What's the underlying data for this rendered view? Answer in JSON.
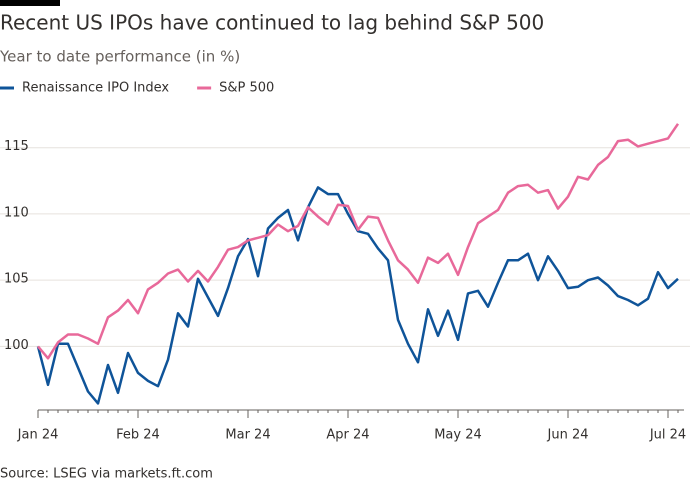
{
  "chart_data": {
    "type": "line",
    "title": "Recent US IPOs have continued to lag behind S&P 500",
    "subtitle": "Year to date performance (in %)",
    "source": "Source: LSEG via markets.ft.com",
    "categories": [
      "Jan 24",
      null,
      null,
      null,
      null,
      null,
      null,
      null,
      null,
      null,
      "Feb 24",
      null,
      null,
      null,
      null,
      null,
      null,
      null,
      null,
      null,
      null,
      "Mar 24",
      null,
      null,
      null,
      null,
      null,
      null,
      null,
      null,
      null,
      "Apr 24",
      null,
      null,
      null,
      null,
      null,
      null,
      null,
      null,
      null,
      null,
      "May 24",
      null,
      null,
      null,
      null,
      null,
      null,
      null,
      null,
      null,
      null,
      "Jun 24",
      null,
      null,
      null,
      null,
      null,
      null,
      null,
      null,
      null,
      "Jul 24",
      null
    ],
    "series": [
      {
        "name": "Renaissance IPO Index",
        "color": "#0f5499",
        "values": [
          100,
          97.1,
          100.2,
          100.2,
          98.4,
          96.6,
          95.7,
          98.6,
          96.5,
          99.5,
          98,
          97.4,
          97,
          99,
          102.5,
          101.5,
          105.1,
          103.7,
          102.3,
          104.4,
          106.8,
          108.1,
          105.3,
          108.9,
          109.7,
          110.3,
          108,
          110.5,
          112,
          111.5,
          111.5,
          110,
          108.7,
          108.5,
          107.4,
          106.5,
          102,
          100.2,
          98.8,
          102.8,
          100.8,
          102.7,
          100.5,
          104,
          104.2,
          103,
          104.8,
          106.5,
          106.5,
          107,
          105,
          106.8,
          105.7,
          104.4,
          104.5,
          105,
          105.2,
          104.6,
          103.8,
          103.5,
          103.1,
          103.6,
          105.6,
          104.4,
          105.1
        ]
      },
      {
        "name": "S&P 500",
        "color": "#e8699a",
        "values": [
          100,
          99.1,
          100.3,
          100.9,
          100.9,
          100.6,
          100.2,
          102.2,
          102.7,
          103.5,
          102.5,
          104.3,
          104.8,
          105.5,
          105.8,
          104.9,
          105.7,
          104.9,
          106,
          107.3,
          107.5,
          108,
          108.2,
          108.4,
          109.2,
          108.7,
          109.1,
          110.5,
          109.8,
          109.2,
          110.7,
          110.6,
          108.8,
          109.8,
          109.7,
          108,
          106.5,
          105.8,
          104.8,
          106.7,
          106.3,
          107,
          105.4,
          107.5,
          109.3,
          109.8,
          110.3,
          111.6,
          112.1,
          112.2,
          111.6,
          111.8,
          110.4,
          111.3,
          112.8,
          112.6,
          113.7,
          114.3,
          115.5,
          115.6,
          115.1,
          115.3,
          115.5,
          115.7,
          116.8
        ]
      }
    ],
    "ylim": [
      95.2,
      118.6
    ],
    "yticks": [
      100,
      105,
      110,
      115
    ],
    "grid": true
  }
}
